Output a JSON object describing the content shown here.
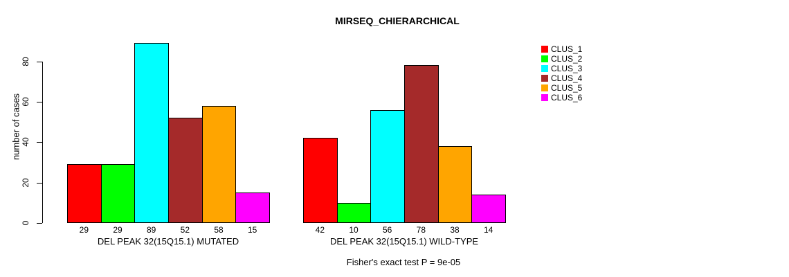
{
  "chart_data": {
    "type": "bar",
    "title": "MIRSEQ_CHIERARCHICAL",
    "ylabel": "number of cases",
    "xlabel": "",
    "ylim": [
      0,
      80
    ],
    "yticks": [
      0,
      20,
      40,
      60,
      80
    ],
    "grid": false,
    "legend_position": "right",
    "bar_value_labels": true,
    "categories": [
      "DEL PEAK 32(15Q15.1) MUTATED",
      "DEL PEAK 32(15Q15.1) WILD-TYPE"
    ],
    "series": [
      {
        "name": "CLUS_1",
        "color": "#FF0000",
        "values": [
          29,
          42
        ]
      },
      {
        "name": "CLUS_2",
        "color": "#00FF00",
        "values": [
          29,
          10
        ]
      },
      {
        "name": "CLUS_3",
        "color": "#00FFFF",
        "values": [
          89,
          56
        ]
      },
      {
        "name": "CLUS_4",
        "color": "#A52A2A",
        "values": [
          52,
          78
        ]
      },
      {
        "name": "CLUS_5",
        "color": "#FFA500",
        "values": [
          58,
          38
        ]
      },
      {
        "name": "CLUS_6",
        "color": "#FF00FF",
        "values": [
          15,
          14
        ]
      }
    ],
    "annotation": "Fisher's exact test P = 9e-05"
  }
}
